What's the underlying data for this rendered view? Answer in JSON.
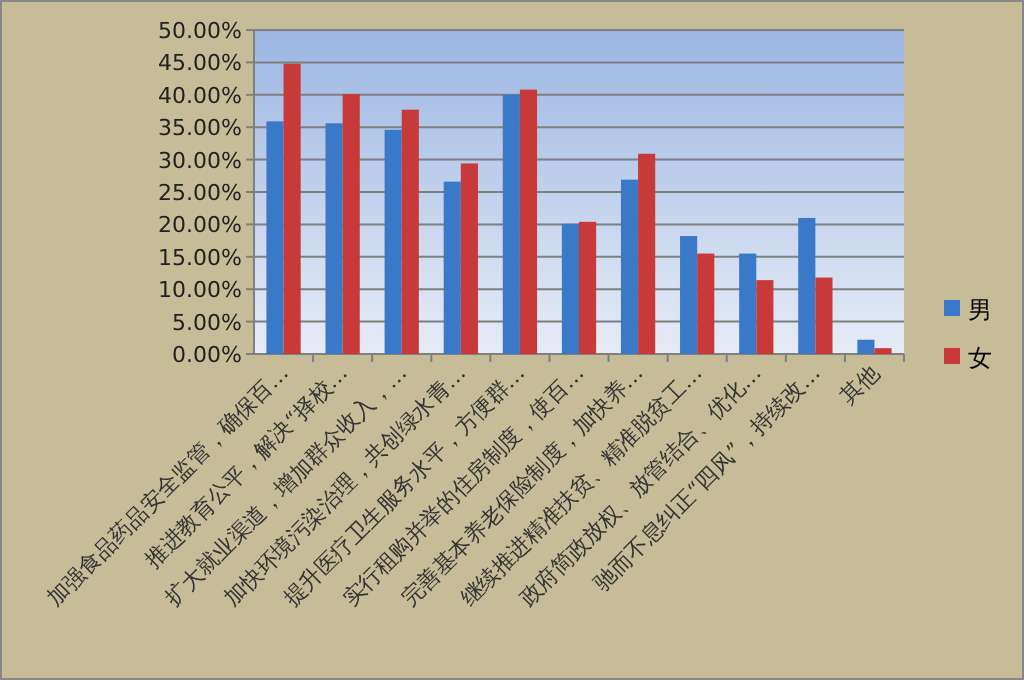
{
  "chart_data": {
    "type": "bar",
    "categories": [
      "加强食品药品安全监管，确保百…",
      "推进教育公平，解决“择校…",
      "扩大就业渠道，增加群众收入，…",
      "加快环境污染治理，共创绿水青…",
      "提升医疗卫生服务水平，方便群…",
      "实行租购并举的住房制度，使百…",
      "完善基本养老保险制度，加快养…",
      "继续推进精准扶贫、精准脱贫工…",
      "政府简政放权、放管结合、优化…",
      "驰而不息纠正“四风”，持续改…",
      "其他"
    ],
    "series": [
      {
        "name": "男",
        "color": "#3a78c8",
        "values": [
          35.9,
          35.6,
          34.6,
          26.6,
          40.0,
          20.1,
          26.9,
          18.2,
          15.5,
          21.0,
          2.2
        ]
      },
      {
        "name": "女",
        "color": "#c83a3a",
        "values": [
          44.8,
          40.1,
          37.7,
          29.4,
          40.8,
          20.4,
          30.9,
          15.5,
          11.4,
          11.8,
          0.9
        ]
      }
    ],
    "ylim": [
      0,
      50
    ],
    "yticks": [
      {
        "value": 0,
        "label": "0.00%"
      },
      {
        "value": 5,
        "label": "5.00%"
      },
      {
        "value": 10,
        "label": "10.00%"
      },
      {
        "value": 15,
        "label": "15.00%"
      },
      {
        "value": 20,
        "label": "20.00%"
      },
      {
        "value": 25,
        "label": "25.00%"
      },
      {
        "value": 30,
        "label": "30.00%"
      },
      {
        "value": 35,
        "label": "35.00%"
      },
      {
        "value": 40,
        "label": "40.00%"
      },
      {
        "value": 45,
        "label": "45.00%"
      },
      {
        "value": 50,
        "label": "50.00%"
      }
    ],
    "grid": "y",
    "legend": "right"
  }
}
